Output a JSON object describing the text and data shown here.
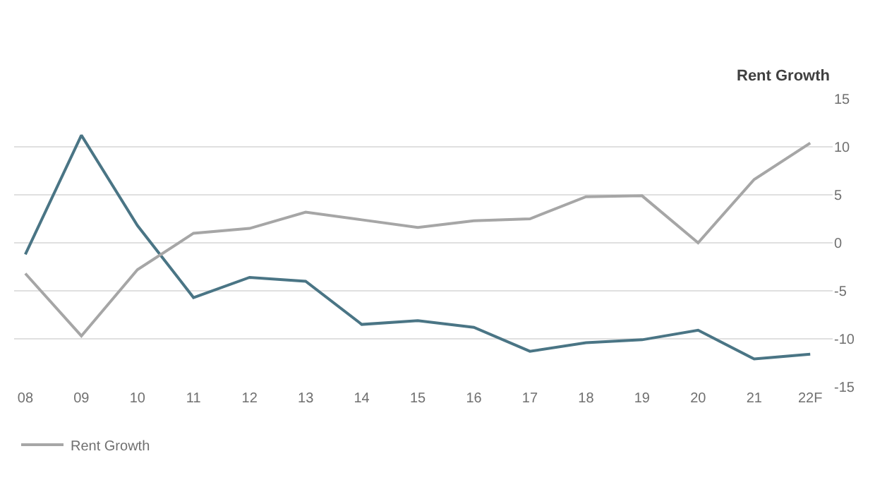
{
  "chart_data": {
    "type": "line",
    "ylabel": "Rent Growth",
    "categories": [
      "08",
      "09",
      "10",
      "11",
      "12",
      "13",
      "14",
      "15",
      "16",
      "17",
      "18",
      "19",
      "20",
      "21",
      "22F"
    ],
    "series": [
      {
        "color": "#4a7585",
        "values": [
          -1.2,
          11.2,
          1.8,
          -5.7,
          -3.6,
          -4.0,
          -8.5,
          -8.1,
          -8.8,
          -11.3,
          -10.4,
          -10.1,
          -9.1,
          -12.1,
          -11.6
        ]
      },
      {
        "name": "Rent Growth",
        "color": "#a6a6a6",
        "values": [
          -3.2,
          -9.7,
          -2.8,
          1.0,
          1.5,
          3.2,
          2.4,
          1.6,
          2.3,
          2.5,
          4.8,
          4.9,
          0.0,
          6.6,
          10.4
        ]
      }
    ],
    "ylim": [
      -15,
      15
    ],
    "yticks": [
      -15,
      -10,
      -5,
      0,
      5,
      10,
      15
    ],
    "grid": "y",
    "legend": "bottom left",
    "marker": "none",
    "line_style": "solid"
  }
}
